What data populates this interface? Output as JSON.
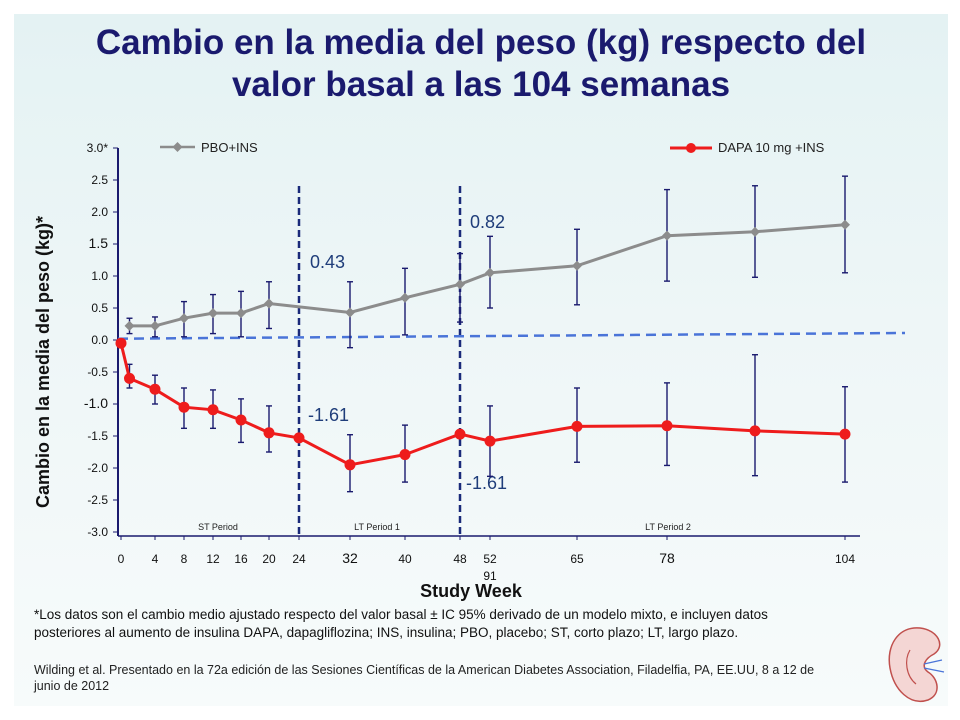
{
  "title_line1": "Cambio en la media del peso (kg) respecto del",
  "title_line2": "valor basal a las 104 semanas",
  "footnote_line1": "*Los datos son el cambio medio ajustado respecto del valor basal ± IC 95% derivado de un modelo mixto, e incluyen datos",
  "footnote_line2": "posteriores al aumento de insulina DAPA, dapagliflozina; INS, insulina; PBO, placebo; ST, corto plazo; LT, largo plazo.",
  "citation_line1": "Wilding et al. Presentado en la 72a edición de las Sesiones Científicas de la American Diabetes Association, Filadelfia, PA, EE.UU, 8 a 12 de",
  "citation_line2": "junio de 2012",
  "colors": {
    "title": "#1a1a6e",
    "pbo": "#8c8c8c",
    "dapa": "#ee1c1c",
    "baseline": "#4a74d8",
    "divider": "#1a2a7a",
    "annotation": "#1f3d7a"
  },
  "chart_data": {
    "type": "line",
    "title": "",
    "xlabel": "Study Week",
    "ylabel": "Cambio en la media del peso (kg)*",
    "ylim": [
      -3.0,
      3.0
    ],
    "x_ticks": [
      "0",
      "4",
      "8",
      "12",
      "16",
      "20",
      "24",
      "32",
      "40",
      "48",
      "52",
      "65",
      "78",
      "104"
    ],
    "x_extra_label": "91",
    "y_ticks": [
      "3.0*",
      "2.5",
      "2.0",
      "1.5",
      "1.0",
      "0.5",
      "0.0",
      "-0.5",
      "-1.0",
      "-1.5",
      "-2.0",
      "-2.5",
      "-3.0"
    ],
    "legend_placement": "top",
    "series": [
      {
        "name": "PBO+INS",
        "points": [
          {
            "x": 1,
            "y": 0.22,
            "lo": 0.1,
            "hi": 0.34
          },
          {
            "x": 4,
            "y": 0.22,
            "lo": 0.05,
            "hi": 0.36
          },
          {
            "x": 8,
            "y": 0.34,
            "lo": 0.05,
            "hi": 0.6
          },
          {
            "x": 12,
            "y": 0.42,
            "lo": 0.1,
            "hi": 0.71
          },
          {
            "x": 16,
            "y": 0.42,
            "lo": 0.05,
            "hi": 0.76
          },
          {
            "x": 20,
            "y": 0.57,
            "lo": 0.18,
            "hi": 0.91
          },
          {
            "x": 32,
            "y": 0.43,
            "lo": -0.12,
            "hi": 0.91
          },
          {
            "x": 40,
            "y": 0.66,
            "lo": 0.08,
            "hi": 1.12
          },
          {
            "x": 48,
            "y": 0.87,
            "lo": 0.28,
            "hi": 1.35
          },
          {
            "x": 52,
            "y": 1.05,
            "lo": 0.5,
            "hi": 1.62
          },
          {
            "x": 65,
            "y": 1.16,
            "lo": 0.55,
            "hi": 1.73
          },
          {
            "x": 78,
            "y": 1.63,
            "lo": 0.92,
            "hi": 2.35
          },
          {
            "x": 91,
            "y": 1.69,
            "lo": 0.98,
            "hi": 2.41
          },
          {
            "x": 104,
            "y": 1.8,
            "lo": 1.05,
            "hi": 2.56
          }
        ]
      },
      {
        "name": "DAPA 10 mg +INS",
        "points": [
          {
            "x": 0,
            "y": -0.05,
            "lo": -0.05,
            "hi": -0.05
          },
          {
            "x": 1,
            "y": -0.6,
            "lo": -0.75,
            "hi": -0.38
          },
          {
            "x": 4,
            "y": -0.77,
            "lo": -1.0,
            "hi": -0.55
          },
          {
            "x": 8,
            "y": -1.05,
            "lo": -1.38,
            "hi": -0.75
          },
          {
            "x": 12,
            "y": -1.09,
            "lo": -1.38,
            "hi": -0.78
          },
          {
            "x": 16,
            "y": -1.25,
            "lo": -1.6,
            "hi": -0.92
          },
          {
            "x": 20,
            "y": -1.45,
            "lo": -1.75,
            "hi": -1.03
          },
          {
            "x": 24,
            "y": -1.53,
            "lo": -1.53,
            "hi": -1.53
          },
          {
            "x": 32,
            "y": -1.95,
            "lo": -2.37,
            "hi": -1.48
          },
          {
            "x": 40,
            "y": -1.79,
            "lo": -2.22,
            "hi": -1.33
          },
          {
            "x": 48,
            "y": -1.47,
            "lo": -1.47,
            "hi": -1.47
          },
          {
            "x": 52,
            "y": -1.58,
            "lo": -2.13,
            "hi": -1.03
          },
          {
            "x": 65,
            "y": -1.35,
            "lo": -1.91,
            "hi": -0.75
          },
          {
            "x": 78,
            "y": -1.34,
            "lo": -1.96,
            "hi": -0.67
          },
          {
            "x": 91,
            "y": -1.42,
            "lo": -2.12,
            "hi": -0.23
          },
          {
            "x": 104,
            "y": -1.47,
            "lo": -2.22,
            "hi": -0.73
          }
        ]
      }
    ],
    "baseline": {
      "label": "",
      "y_start": 0.02,
      "y_end": 0.11
    },
    "dividers": [
      24,
      48
    ],
    "periods": [
      "ST Period",
      "LT Period 1",
      "LT Period 2"
    ],
    "annotations": [
      "0.43",
      "0.82",
      "-1.61",
      "-1.61"
    ]
  }
}
